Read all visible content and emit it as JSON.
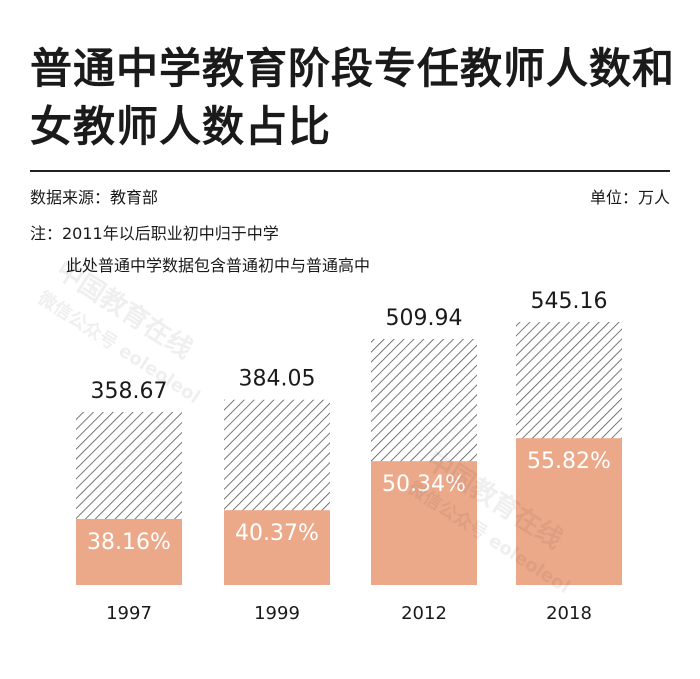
{
  "title": "普通中学教育阶段专任教师人数和女教师人数占比",
  "source": "数据来源：教育部",
  "unit": "单位：万人",
  "note_line1": "注：2011年以后职业初中归于中学",
  "note_line2": "此处普通中学数据包含普通初中与普通高中",
  "watermark": {
    "main": "中国教育在线",
    "sub": "微信公众号 eoleoleol"
  },
  "colors": {
    "female": "#eca98a",
    "hatch": "#555555",
    "text": "#1a1a1a"
  },
  "chart_data": {
    "type": "bar",
    "categories": [
      "1997",
      "1999",
      "2012",
      "2018"
    ],
    "series": [
      {
        "values": [
          358.67,
          384.05,
          509.94,
          545.16
        ]
      },
      {
        "values": [
          38.16,
          40.37,
          50.34,
          55.82
        ]
      }
    ],
    "total_labels": [
      "358.67",
      "384.05",
      "509.94",
      "545.16"
    ],
    "percent_labels": [
      "38.16%",
      "40.37%",
      "50.34%",
      "55.82%"
    ],
    "ylim": [
      0,
      545.16
    ],
    "grid": false,
    "legend": "none"
  }
}
